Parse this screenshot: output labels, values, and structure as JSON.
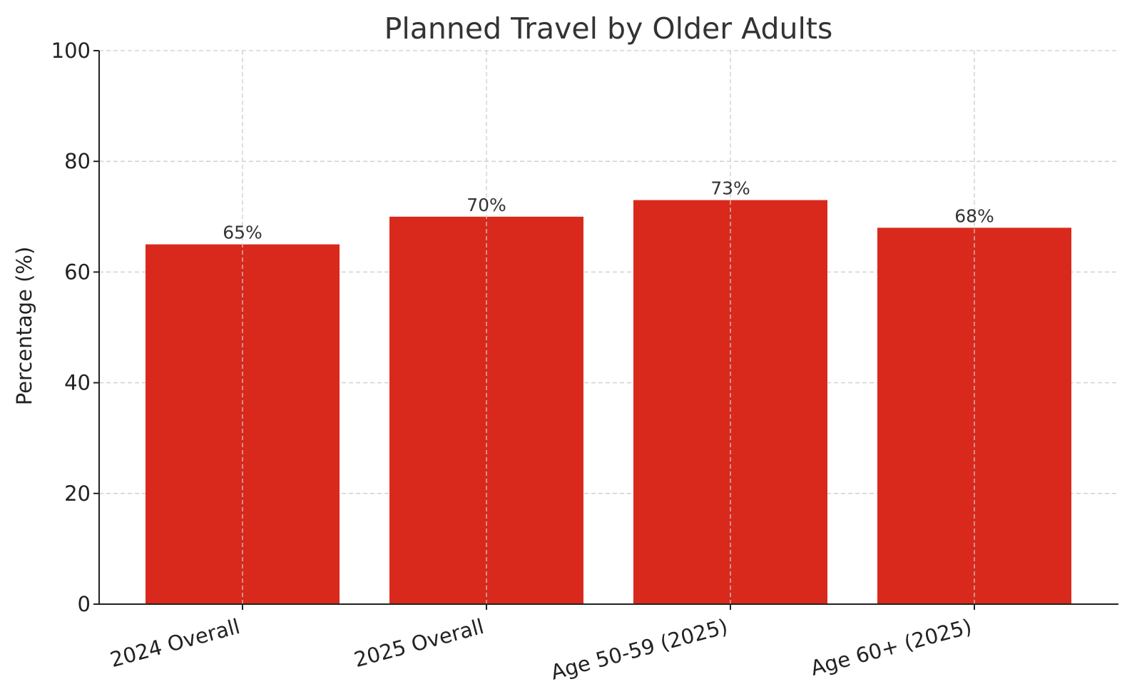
{
  "chart_data": {
    "type": "bar",
    "title": "Planned Travel by Older Adults",
    "xlabel": "",
    "ylabel": "Percentage (%)",
    "categories": [
      "2024 Overall",
      "2025 Overall",
      "Age 50-59 (2025)",
      "Age 60+ (2025)"
    ],
    "values": [
      65,
      70,
      73,
      68
    ],
    "value_labels": [
      "65%",
      "70%",
      "73%",
      "68%"
    ],
    "ylim": [
      0,
      100
    ],
    "yticks": [
      0,
      20,
      40,
      60,
      80,
      100
    ],
    "grid": true,
    "legend": "none",
    "bar_color": "#d9291c"
  }
}
